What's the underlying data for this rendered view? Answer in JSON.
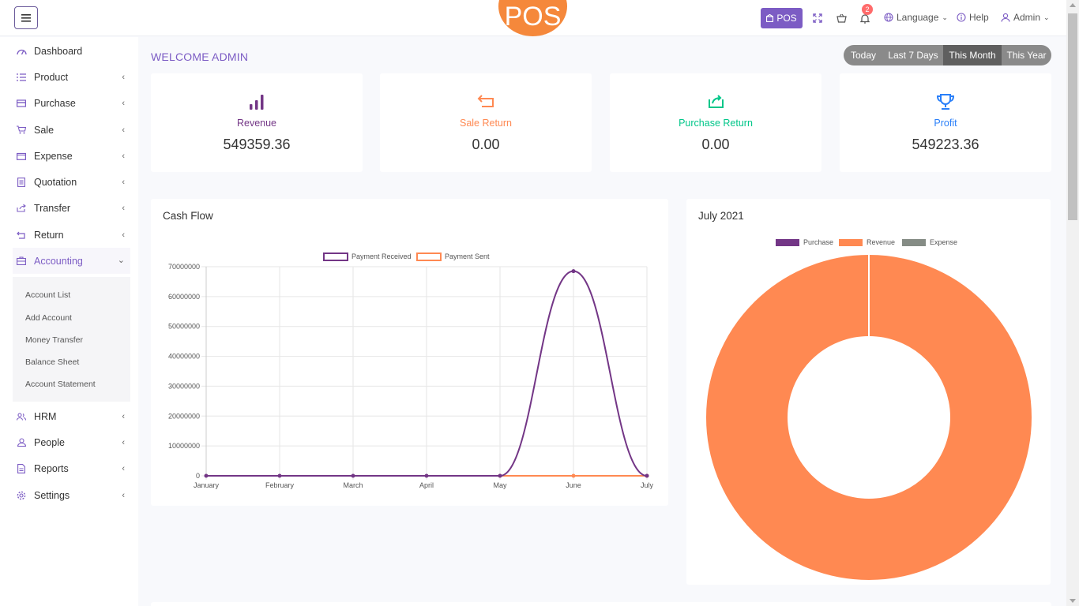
{
  "header": {
    "logo_text": "POS",
    "pos_button": "POS",
    "notification_count": "2",
    "language": "Language",
    "help": "Help",
    "user": "Admin"
  },
  "sidebar": {
    "items": [
      {
        "label": "Dashboard",
        "icon": "dashboard-icon"
      },
      {
        "label": "Product",
        "icon": "list-icon"
      },
      {
        "label": "Purchase",
        "icon": "card-icon"
      },
      {
        "label": "Sale",
        "icon": "cart-icon"
      },
      {
        "label": "Expense",
        "icon": "wallet-icon"
      },
      {
        "label": "Quotation",
        "icon": "document-icon"
      },
      {
        "label": "Transfer",
        "icon": "share-icon"
      },
      {
        "label": "Return",
        "icon": "return-icon"
      },
      {
        "label": "Accounting",
        "icon": "briefcase-icon"
      },
      {
        "label": "HRM",
        "icon": "users-icon"
      },
      {
        "label": "People",
        "icon": "user-icon"
      },
      {
        "label": "Reports",
        "icon": "file-icon"
      },
      {
        "label": "Settings",
        "icon": "gear-icon"
      }
    ],
    "accounting_sub": [
      "Account List",
      "Add Account",
      "Money Transfer",
      "Balance Sheet",
      "Account Statement"
    ]
  },
  "main": {
    "welcome": "WELCOME ADMIN",
    "filters": [
      "Today",
      "Last 7 Days",
      "This Month",
      "This Year"
    ],
    "selected_filter": "This Month",
    "stats": [
      {
        "label": "Revenue",
        "value": "549359.36",
        "color": "#733686"
      },
      {
        "label": "Sale Return",
        "value": "0.00",
        "color": "#ff8952"
      },
      {
        "label": "Purchase Return",
        "value": "0.00",
        "color": "#00c689"
      },
      {
        "label": "Profit",
        "value": "549223.36",
        "color": "#297ff9"
      }
    ]
  },
  "chart_data": [
    {
      "type": "line",
      "title": "Cash Flow",
      "categories": [
        "January",
        "February",
        "March",
        "April",
        "May",
        "June",
        "July"
      ],
      "y_ticks": [
        "70000000",
        "60000000",
        "50000000",
        "40000000",
        "30000000",
        "20000000",
        "10000000",
        "0"
      ],
      "ylim": [
        0,
        70000000
      ],
      "legend_position": "top",
      "grid": true,
      "series": [
        {
          "name": "Payment Received",
          "color": "#733686",
          "values": [
            0,
            0,
            0,
            0,
            0,
            68500000,
            0
          ]
        },
        {
          "name": "Payment Sent",
          "color": "#ff8952",
          "values": [
            0,
            0,
            0,
            0,
            0,
            0,
            0
          ]
        }
      ]
    },
    {
      "type": "pie",
      "title": "July 2021",
      "legend_position": "top",
      "categories": [
        "Purchase",
        "Revenue",
        "Expense"
      ],
      "colors": [
        "#733686",
        "#ff8952",
        "#858c85"
      ],
      "values": [
        0,
        100,
        0
      ]
    }
  ]
}
